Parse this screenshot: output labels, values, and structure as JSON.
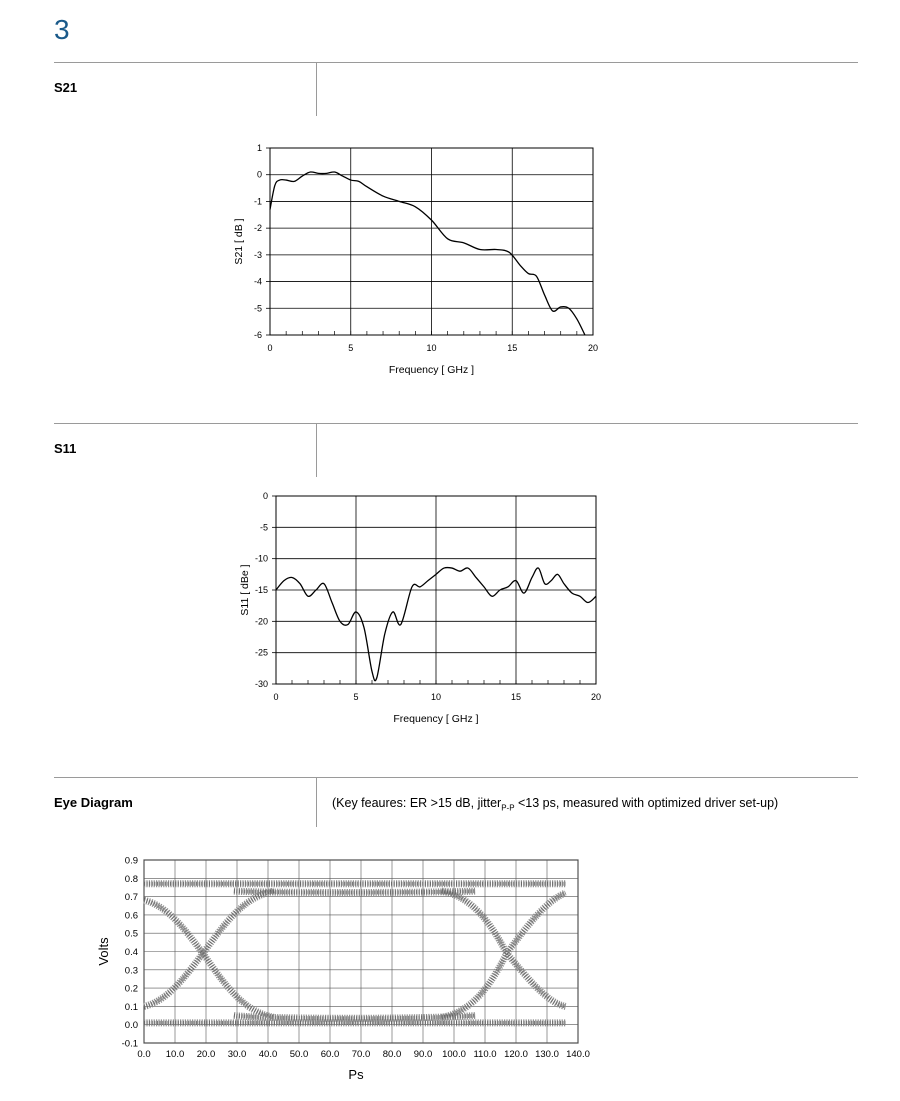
{
  "page_number": "3",
  "sections": [
    {
      "label": "S21",
      "note": ""
    },
    {
      "label": "S11",
      "note": ""
    },
    {
      "label": "Eye Diagram",
      "note": "(Key feaures: ER >15 dB, jitter",
      "note_sub": "P-P",
      "note_tail": " <13 ps, measured with optimized driver set-up)"
    }
  ],
  "chart_data": [
    {
      "type": "line",
      "xlabel": "Frequency [ GHz ]",
      "ylabel": "S21 [ dB ]",
      "xlim": [
        0,
        20
      ],
      "ylim": [
        -6,
        1
      ],
      "xticks": [
        "0",
        "5",
        "10",
        "15",
        "20"
      ],
      "yticks": [
        "1",
        "0",
        "-1",
        "-2",
        "-3",
        "-4",
        "-5",
        "-6"
      ],
      "grid": true,
      "x": [
        0,
        0.3,
        0.6,
        1,
        1.5,
        2,
        2.5,
        3,
        3.5,
        4,
        4.5,
        5,
        5.5,
        6,
        7,
        8,
        9,
        10,
        11,
        12,
        13,
        14,
        14.8,
        15.5,
        16,
        16.5,
        17,
        17.5,
        18,
        18.5,
        19,
        19.5
      ],
      "y": [
        -1.3,
        -0.4,
        -0.2,
        -0.2,
        -0.25,
        -0.05,
        0.1,
        0.05,
        0.05,
        0.1,
        -0.05,
        -0.2,
        -0.25,
        -0.45,
        -0.8,
        -1.0,
        -1.2,
        -1.7,
        -2.4,
        -2.55,
        -2.8,
        -2.8,
        -2.9,
        -3.4,
        -3.7,
        -3.8,
        -4.5,
        -5.1,
        -4.95,
        -5.0,
        -5.4,
        -6.0
      ],
      "minor_xticks": true
    },
    {
      "type": "line",
      "xlabel": "Frequency [ GHz ]",
      "ylabel": "S11 [ dBe ]",
      "xlim": [
        0,
        20
      ],
      "ylim": [
        -30,
        0
      ],
      "xticks": [
        "0",
        "5",
        "10",
        "15",
        "20"
      ],
      "yticks": [
        "0",
        "-5",
        "-10",
        "-15",
        "-20",
        "-25",
        "-30"
      ],
      "grid": true,
      "x": [
        0,
        0.5,
        1,
        1.5,
        2,
        2.5,
        3,
        3.5,
        4,
        4.5,
        5,
        5.5,
        6,
        6.3,
        6.8,
        7.3,
        7.8,
        8.5,
        9,
        9.5,
        10,
        10.5,
        11,
        11.5,
        12,
        12.5,
        13,
        13.5,
        14,
        14.5,
        15,
        15.5,
        16,
        16.4,
        16.8,
        17.2,
        17.6,
        18,
        18.5,
        19,
        19.5,
        20
      ],
      "y": [
        -15,
        -13.5,
        -13,
        -14,
        -16,
        -15,
        -14,
        -17,
        -20,
        -20.5,
        -18.5,
        -21,
        -28,
        -29,
        -22,
        -18.5,
        -20.5,
        -14.5,
        -14.5,
        -13.5,
        -12.5,
        -11.5,
        -11.5,
        -12,
        -11.5,
        -13,
        -14.5,
        -16,
        -15,
        -14.5,
        -13.5,
        -15.5,
        -13,
        -11.5,
        -14,
        -13.5,
        -12.5,
        -14,
        -15.5,
        -16,
        -17,
        -16
      ],
      "minor_xticks": true
    },
    {
      "type": "scatter",
      "xlabel": "Ps",
      "ylabel": "Volts",
      "xlim": [
        0,
        140
      ],
      "ylim": [
        -0.1,
        0.9
      ],
      "xticks": [
        "0.0",
        "10.0",
        "20.0",
        "30.0",
        "40.0",
        "50.0",
        "60.0",
        "70.0",
        "80.0",
        "90.0",
        "100.0",
        "110.0",
        "120.0",
        "130.0",
        "140.0"
      ],
      "yticks": [
        "0.9",
        "0.8",
        "0.7",
        "0.6",
        "0.5",
        "0.4",
        "0.3",
        "0.2",
        "0.1",
        "0.0",
        "-0.1"
      ],
      "grid": true,
      "eye": {
        "high_level": 0.75,
        "low_level": 0.01,
        "crossing_x": [
          19,
          117
        ],
        "crossing_y": 0.39,
        "data_end_x": 136
      }
    }
  ]
}
